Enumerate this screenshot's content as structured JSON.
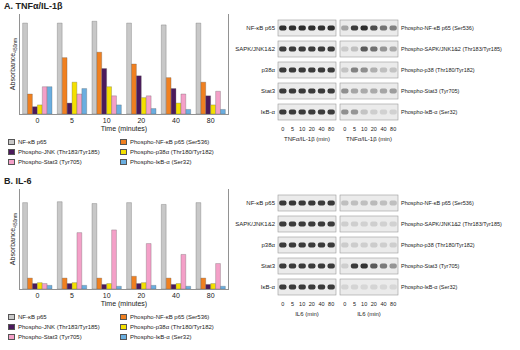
{
  "chart_data": [
    {
      "type": "bar",
      "title": "A. TNFα/IL-1β",
      "x_label": "Time (minutes)",
      "y_label": "Absorbance",
      "y_label_subscript": "450nm",
      "categories": [
        "0",
        "5",
        "10",
        "20",
        "40",
        "80"
      ],
      "series": [
        {
          "name": "NF-κB p65",
          "color": "#c8c8c8",
          "values": [
            1.0,
            1.0,
            1.02,
            1.0,
            0.98,
            1.0
          ]
        },
        {
          "name": "Phospho-NF-κB p65 (Ser536)",
          "color": "#f08020",
          "values": [
            0.22,
            0.62,
            0.68,
            0.55,
            0.4,
            0.35
          ]
        },
        {
          "name": "Phospho-JNK (Thr183/Tyr185)",
          "color": "#4b1a5c",
          "values": [
            0.08,
            0.12,
            0.5,
            0.42,
            0.28,
            0.2
          ]
        },
        {
          "name": "Phospho-p38α (Thr180/Tyr182)",
          "color": "#f4e000",
          "values": [
            0.1,
            0.35,
            0.3,
            0.18,
            0.12,
            0.1
          ]
        },
        {
          "name": "Phospho-Stat3 (Tyr705)",
          "color": "#f4a0c8",
          "values": [
            0.3,
            0.22,
            0.2,
            0.2,
            0.22,
            0.25
          ]
        },
        {
          "name": "Phospho-IκB-α (Ser32)",
          "color": "#6aaee0",
          "values": [
            0.3,
            0.28,
            0.1,
            0.06,
            0.05,
            0.05
          ]
        }
      ],
      "ylim": [
        0,
        1.1
      ],
      "tick_labels": "x",
      "grid": false,
      "legend": "bottom"
    },
    {
      "type": "bar",
      "title": "B. IL-6",
      "x_label": "Time (minutes)",
      "y_label": "Absorbance",
      "y_label_subscript": "450nm",
      "categories": [
        "0",
        "5",
        "10",
        "20",
        "40",
        "80"
      ],
      "series": [
        {
          "name": "NF-κB p65",
          "color": "#c8c8c8",
          "values": [
            0.95,
            0.96,
            0.94,
            0.95,
            0.93,
            0.95
          ]
        },
        {
          "name": "Phospho-NF-κB p65 (Ser536)",
          "color": "#f08020",
          "values": [
            0.12,
            0.12,
            0.12,
            0.14,
            0.12,
            0.12
          ]
        },
        {
          "name": "Phospho-JNK (Thr183/Tyr185)",
          "color": "#4b1a5c",
          "values": [
            0.06,
            0.06,
            0.05,
            0.06,
            0.05,
            0.05
          ]
        },
        {
          "name": "Phospho-p38α (Thr180/Tyr182)",
          "color": "#f4e000",
          "values": [
            0.07,
            0.07,
            0.06,
            0.07,
            0.06,
            0.06
          ]
        },
        {
          "name": "Phospho-Stat3 (Tyr705)",
          "color": "#f4a0c8",
          "values": [
            0.06,
            0.62,
            0.65,
            0.5,
            0.38,
            0.28
          ]
        },
        {
          "name": "Phospho-IκB-α (Ser32)",
          "color": "#6aaee0",
          "values": [
            0.04,
            0.04,
            0.03,
            0.04,
            0.03,
            0.03
          ]
        }
      ],
      "ylim": [
        0,
        1.1
      ],
      "tick_labels": "x",
      "grid": false,
      "legend": "bottom"
    }
  ],
  "blots": [
    {
      "lanes": [
        "0",
        "5",
        "10",
        "20",
        "40",
        "80"
      ],
      "x_label": "TNFα/IL-1β (min)",
      "left_labels": [
        "NF-κB p65",
        "SAPK/JNK1&2",
        "p38α",
        "Stat3",
        "IκB-α"
      ],
      "right_labels": [
        "Phospho-NF-κB p65 (Ser536)",
        "Phospho-SAPK/JNK1&2 (Thr183/Tyr185)",
        "Phospho-p38 (Thr180/Tyr182)",
        "Phospho-Stat3 (Tyr705)",
        "Phospho-IκB-α (Ser32)"
      ]
    },
    {
      "lanes": [
        "0",
        "5",
        "10",
        "20",
        "40",
        "80"
      ],
      "x_label": "IL6 (min)",
      "left_labels": [
        "NF-κB p65",
        "SAPK/JNK1&2",
        "p38α",
        "Stat3",
        "IκB-α"
      ],
      "right_labels": [
        "Phospho-NF-κB p65 (Ser536)",
        "Phospho-SAPK/JNK1&2 (Thr183/Tyr185)",
        "Phospho-p38 (Thr180/Tyr182)",
        "Phospho-Stat3 (Tyr705)",
        "Phospho-IκB-α (Ser32)"
      ]
    }
  ]
}
